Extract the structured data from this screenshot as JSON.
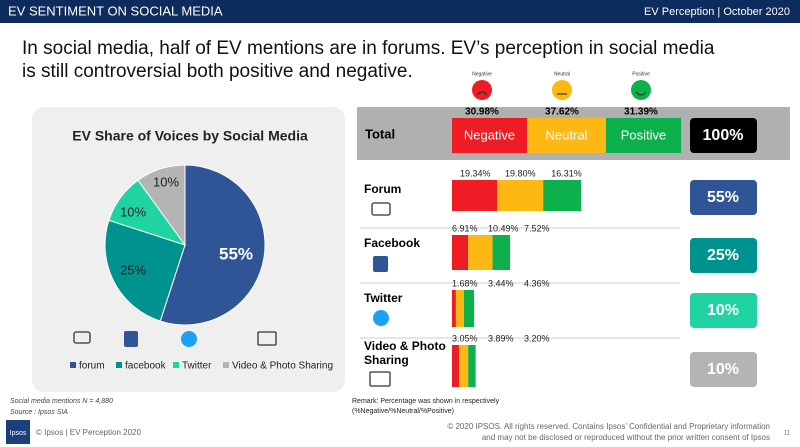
{
  "header": {
    "title": "EV SENTIMENT ON SOCIAL MEDIA",
    "section": "EV Perception | October 2020"
  },
  "headline": "In social media, half of EV mentions are in forums. EV’s perception in social media is still controversial both positive and negative.",
  "chart_data": [
    {
      "type": "pie",
      "title": "EV Share of Voices by Social Media",
      "categories": [
        "forum",
        "facebook",
        "Twitter",
        "Video & Photo Sharing"
      ],
      "values": [
        55,
        25,
        10,
        10
      ],
      "value_labels": [
        "55%",
        "25%",
        "10%",
        "10%"
      ],
      "colors": [
        "#2f5597",
        "#00928f",
        "#1fd3a3",
        "#b4b4b4"
      ]
    },
    {
      "type": "stacked-bar",
      "categories": [
        "Forum",
        "Facebook",
        "Twitter",
        "Video & Photo Sharing"
      ],
      "series": [
        {
          "name": "Negative",
          "color": "#ee1c25",
          "values": [
            19.34,
            6.91,
            1.68,
            3.05
          ],
          "value_labels": [
            "19.34%",
            "6.91%",
            "1.68%",
            "3.05%"
          ],
          "total": 30.98,
          "total_label": "30.98%"
        },
        {
          "name": "Neutral",
          "color": "#fdb813",
          "values": [
            19.8,
            10.49,
            3.44,
            3.89
          ],
          "value_labels": [
            "19.80%",
            "10.49%",
            "3.44%",
            "3.89%"
          ],
          "total": 37.62,
          "total_label": "37.62%"
        },
        {
          "name": "Positive",
          "color": "#0db14b",
          "values": [
            16.31,
            7.52,
            4.36,
            3.2
          ],
          "value_labels": [
            "16.31%",
            "7.52%",
            "4.36%",
            "3.20%"
          ],
          "total": 31.39,
          "total_label": "31.39%"
        }
      ],
      "total_row": {
        "label": "Total",
        "value": 100,
        "value_label": "100%"
      }
    }
  ],
  "notes": {
    "mentions": "Social media mentions N = 4,880",
    "source": "Source : Ipsos SIA",
    "remark": [
      "Remark: Percentage was shown in respectively",
      "(%Negative/%Neutral/%Positive)"
    ]
  },
  "footer": {
    "logo": "Ipsos",
    "left": "© Ipsos | EV Perception 2020",
    "right": [
      "© 2020 IPSOS. All rights reserved. Contains Ipsos’ Confidential and Proprietary information",
      "and may not be disclosed or reproduced without the prior written consent of Ipsos"
    ],
    "page": "11"
  }
}
